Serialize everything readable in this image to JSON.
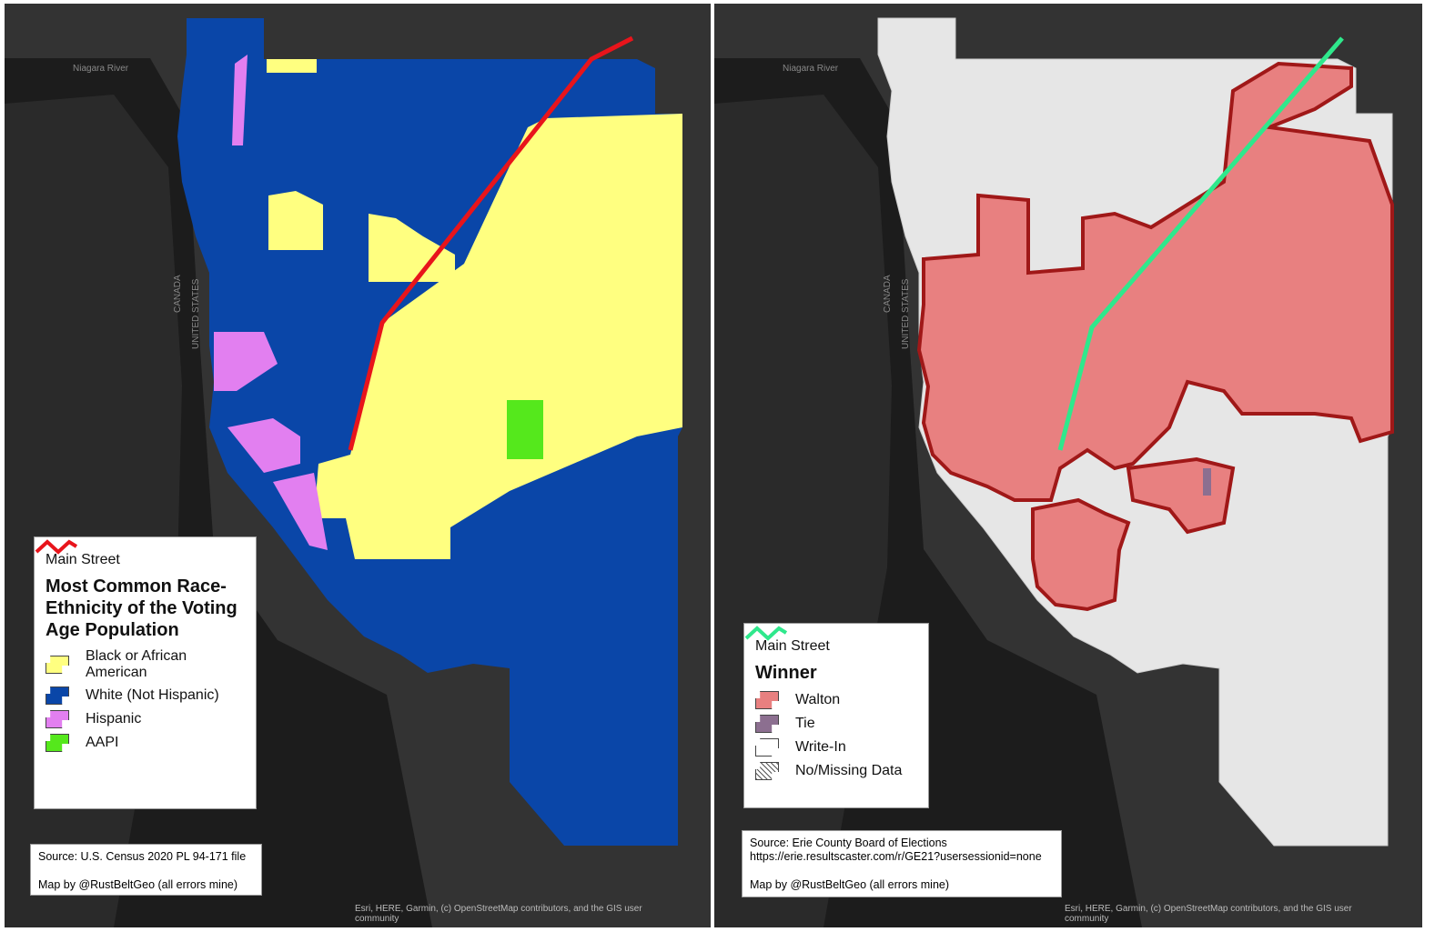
{
  "maps": [
    {
      "legend": {
        "line_label": "Main Street",
        "line_color": "#e8141b",
        "title": "Most Common Race-Ethnicity of the Voting Age Population",
        "items": [
          {
            "label": "Black or African American",
            "color": "#ffff80"
          },
          {
            "label": "White (Not Hispanic)",
            "color": "#0a46a8"
          },
          {
            "label": "Hispanic",
            "color": "#e27ff0"
          },
          {
            "label": "AAPI",
            "color": "#55e81c"
          }
        ]
      },
      "source": [
        "Source: U.S. Census 2020 PL 94-171 file"
      ],
      "credit": "Map by @RustBeltGeo (all errors mine)",
      "basemap_labels": [
        "Niagara River",
        "CANADA",
        "UNITED STATES"
      ],
      "attribution": "Esri, HERE, Garmin, (c) OpenStreetMap contributors, and the GIS user community"
    },
    {
      "legend": {
        "line_label": "Main Street",
        "line_color": "#2fe88c",
        "title": "Winner",
        "items": [
          {
            "label": "Walton",
            "color": "#e88080"
          },
          {
            "label": "Tie",
            "color": "#8c6f90"
          },
          {
            "label": "Write-In",
            "color": "#ffffff"
          },
          {
            "label": "No/Missing Data"
          }
        ]
      },
      "source": [
        "Source: Erie County Board of Elections",
        "https://erie.resultscaster.com/r/GE21?usersessionid=none"
      ],
      "credit": "Map by @RustBeltGeo (all errors mine)",
      "basemap_labels": [
        "Niagara River",
        "CANADA",
        "UNITED STATES"
      ],
      "attribution": "Esri, HERE, Garmin, (c) OpenStreetMap contributors, and the GIS user community"
    }
  ]
}
